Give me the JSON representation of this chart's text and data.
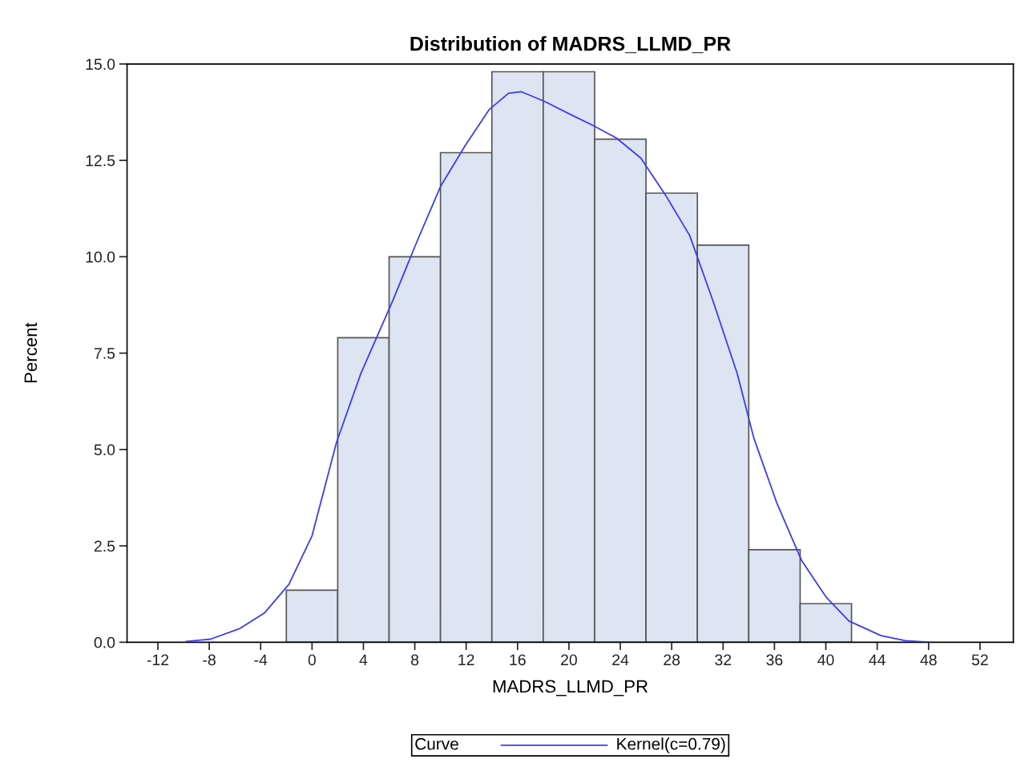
{
  "chart_data": {
    "type": "histogram",
    "title": "Distribution of MADRS_LLMD_PR",
    "xlabel": "MADRS_LLMD_PR",
    "ylabel": "Percent",
    "bins": [
      -2,
      2,
      6,
      10,
      14,
      18,
      22,
      26,
      30,
      34,
      38,
      42
    ],
    "values": [
      1.35,
      7.9,
      10.0,
      12.7,
      14.8,
      14.8,
      13.05,
      11.65,
      10.3,
      2.4,
      1.0
    ],
    "color": "#dce5f1",
    "series": [
      {
        "type": "line",
        "name": "Kernel(c=0.79)",
        "color": "#3c3cf0",
        "x": [
          -9.8,
          -7.9,
          -5.6,
          -3.7,
          -1.8,
          0.0,
          1.9,
          3.8,
          6.3,
          8.1,
          10.0,
          11.9,
          13.8,
          15.3,
          16.3,
          18.1,
          20.0,
          21.9,
          23.7,
          25.6,
          27.5,
          29.4,
          31.2,
          33.1,
          34.4,
          36.2,
          38.1,
          40.0,
          41.8,
          44.3,
          46.2,
          48.1
        ],
        "values": [
          0.02,
          0.08,
          0.36,
          0.76,
          1.5,
          2.76,
          5.18,
          6.97,
          8.87,
          10.34,
          11.82,
          12.87,
          13.82,
          14.24,
          14.28,
          14.03,
          13.71,
          13.4,
          13.08,
          12.56,
          11.61,
          10.55,
          8.87,
          6.97,
          5.29,
          3.6,
          2.13,
          1.18,
          0.55,
          0.17,
          0.04,
          0.0
        ]
      }
    ],
    "legend": "bottom",
    "legend_title": "Curve",
    "grid": false,
    "xlim": [
      -14.4,
      54.6
    ],
    "xticks": [
      -12,
      -8,
      -4,
      0,
      4,
      8,
      12,
      16,
      20,
      24,
      28,
      32,
      36,
      40,
      44,
      48,
      52
    ],
    "ylim": [
      0,
      15
    ],
    "yticks": [
      {
        "value": 0,
        "label": "0.0"
      },
      {
        "value": 2.5,
        "label": "2.5"
      },
      {
        "value": 5,
        "label": "5.0"
      },
      {
        "value": 7.5,
        "label": "7.5"
      },
      {
        "value": 10,
        "label": "10.0"
      },
      {
        "value": 12.5,
        "label": "12.5"
      },
      {
        "value": 15,
        "label": "15.0"
      }
    ]
  }
}
